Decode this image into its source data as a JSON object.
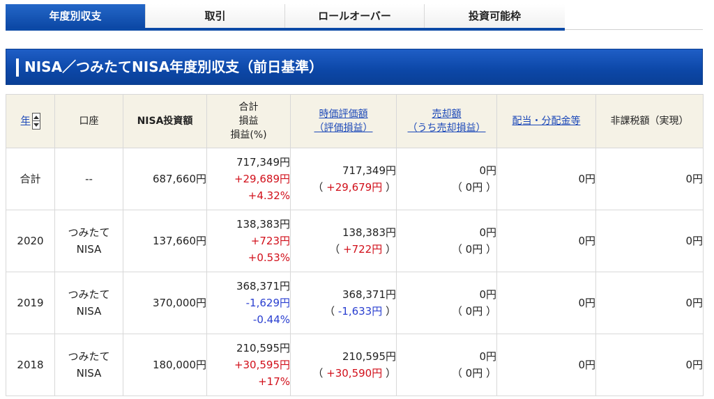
{
  "tabs": [
    {
      "label": "年度別収支",
      "active": true
    },
    {
      "label": "取引",
      "active": false
    },
    {
      "label": "ロールオーバー",
      "active": false
    },
    {
      "label": "投資可能枠",
      "active": false
    }
  ],
  "section": {
    "title": "NISA／つみたてNISA年度別収支（前日基準）"
  },
  "table": {
    "headers": {
      "year": "年",
      "account": "口座",
      "investment": "NISA投資額",
      "total_line1": "合計",
      "total_line2": "損益",
      "total_line3": "損益(%)",
      "market_value_line1": "時価評価額",
      "market_value_line2": "（評価損益）",
      "sale_line1": "売却額",
      "sale_line2": "（うち売却損益）",
      "dividend": "配当・分配金等",
      "tax_exempt": "非課税額（実現）"
    },
    "rows": [
      {
        "year": "合計",
        "account_line1": "--",
        "account_line2": "",
        "investment": "687,660円",
        "total": "717,349円",
        "profit": "+29,689円",
        "profit_pct": "+4.32%",
        "market_value": "717,349円",
        "market_pl": "+29,679円",
        "sale": "0円",
        "sale_pl": "0円",
        "dividend": "0円",
        "tax_exempt": "0円"
      },
      {
        "year": "2020",
        "account_line1": "つみたて",
        "account_line2": "NISA",
        "investment": "137,660円",
        "total": "138,383円",
        "profit": "+723円",
        "profit_pct": "+0.53%",
        "market_value": "138,383円",
        "market_pl": "+722円",
        "sale": "0円",
        "sale_pl": "0円",
        "dividend": "0円",
        "tax_exempt": "0円"
      },
      {
        "year": "2019",
        "account_line1": "つみたて",
        "account_line2": "NISA",
        "investment": "370,000円",
        "total": "368,371円",
        "profit": "-1,629円",
        "profit_pct": "-0.44%",
        "market_value": "368,371円",
        "market_pl": "-1,633円",
        "sale": "0円",
        "sale_pl": "0円",
        "dividend": "0円",
        "tax_exempt": "0円"
      },
      {
        "year": "2018",
        "account_line1": "つみたて",
        "account_line2": "NISA",
        "investment": "180,000円",
        "total": "210,595円",
        "profit": "+30,595円",
        "profit_pct": "+17%",
        "market_value": "210,595円",
        "market_pl": "+30,590円",
        "sale": "0円",
        "sale_pl": "0円",
        "dividend": "0円",
        "tax_exempt": "0円"
      }
    ]
  },
  "colors": {
    "accent": "#0c48a6",
    "positive": "#d10f1a",
    "negative": "#2a3fd0",
    "header_bg": "#f5f2e6",
    "link": "#1a47b8"
  }
}
